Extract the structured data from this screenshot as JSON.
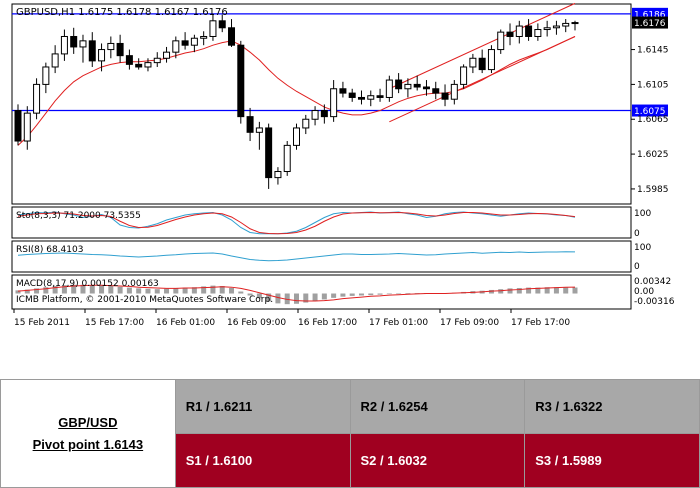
{
  "chart_data": {
    "type": "candlestick",
    "symbol_header": "GBPUSD,H1  1.6175 1.6178 1.6167 1.6176",
    "ylim": [
      1.597,
      1.6195
    ],
    "y_ticks": [
      "1.6145",
      "1.6105",
      "1.6065",
      "1.6025",
      "1.5985"
    ],
    "hlines": [
      {
        "value": 1.6186,
        "label": "1.6186",
        "color": "#0000ff"
      },
      {
        "value": 1.6075,
        "label": "1.6075",
        "color": "#0000ff"
      }
    ],
    "current_price": "1.6176",
    "x_labels": [
      "15 Feb 2011",
      "15 Feb 17:00",
      "16 Feb 01:00",
      "16 Feb 09:00",
      "16 Feb 17:00",
      "17 Feb 01:00",
      "17 Feb 09:00",
      "17 Feb 17:00"
    ],
    "candles": [
      [
        1.6075,
        1.6082,
        1.6035,
        1.604
      ],
      [
        1.604,
        1.608,
        1.603,
        1.6072
      ],
      [
        1.6072,
        1.6112,
        1.6065,
        1.6105
      ],
      [
        1.6105,
        1.613,
        1.6095,
        1.6125
      ],
      [
        1.6125,
        1.615,
        1.6118,
        1.614
      ],
      [
        1.614,
        1.6168,
        1.6132,
        1.616
      ],
      [
        1.616,
        1.617,
        1.614,
        1.6148
      ],
      [
        1.6148,
        1.6162,
        1.613,
        1.6155
      ],
      [
        1.6155,
        1.6165,
        1.6125,
        1.6132
      ],
      [
        1.6132,
        1.6152,
        1.612,
        1.6145
      ],
      [
        1.6145,
        1.616,
        1.6135,
        1.6152
      ],
      [
        1.6152,
        1.6162,
        1.613,
        1.6138
      ],
      [
        1.6138,
        1.6145,
        1.6122,
        1.6128
      ],
      [
        1.6128,
        1.6135,
        1.6122,
        1.6125
      ],
      [
        1.6125,
        1.6135,
        1.612,
        1.613
      ],
      [
        1.613,
        1.6142,
        1.6125,
        1.6135
      ],
      [
        1.6135,
        1.6148,
        1.613,
        1.6142
      ],
      [
        1.6142,
        1.616,
        1.6135,
        1.6155
      ],
      [
        1.6155,
        1.6165,
        1.6145,
        1.615
      ],
      [
        1.615,
        1.6162,
        1.6142,
        1.6158
      ],
      [
        1.6158,
        1.6166,
        1.615,
        1.616
      ],
      [
        1.616,
        1.6186,
        1.6155,
        1.6178
      ],
      [
        1.6178,
        1.6185,
        1.6165,
        1.617
      ],
      [
        1.617,
        1.618,
        1.6148,
        1.615
      ],
      [
        1.615,
        1.6155,
        1.606,
        1.6068
      ],
      [
        1.6068,
        1.6078,
        1.604,
        1.605
      ],
      [
        1.605,
        1.6062,
        1.603,
        1.6055
      ],
      [
        1.6055,
        1.606,
        1.5985,
        1.5998
      ],
      [
        1.5998,
        1.601,
        1.599,
        1.6005
      ],
      [
        1.6005,
        1.604,
        1.6,
        1.6035
      ],
      [
        1.6035,
        1.606,
        1.603,
        1.6055
      ],
      [
        1.6055,
        1.607,
        1.6048,
        1.6065
      ],
      [
        1.6065,
        1.608,
        1.6058,
        1.6075
      ],
      [
        1.6075,
        1.6082,
        1.606,
        1.6068
      ],
      [
        1.6068,
        1.611,
        1.6062,
        1.61
      ],
      [
        1.61,
        1.6108,
        1.609,
        1.6095
      ],
      [
        1.6095,
        1.61,
        1.6085,
        1.609
      ],
      [
        1.609,
        1.6098,
        1.6082,
        1.6088
      ],
      [
        1.6088,
        1.6098,
        1.608,
        1.6092
      ],
      [
        1.6092,
        1.61,
        1.6085,
        1.609
      ],
      [
        1.609,
        1.6115,
        1.6085,
        1.611
      ],
      [
        1.611,
        1.6118,
        1.6095,
        1.61
      ],
      [
        1.61,
        1.6112,
        1.609,
        1.6105
      ],
      [
        1.6105,
        1.6115,
        1.6098,
        1.6102
      ],
      [
        1.6102,
        1.611,
        1.6092,
        1.61
      ],
      [
        1.61,
        1.6108,
        1.6088,
        1.6095
      ],
      [
        1.6095,
        1.6105,
        1.608,
        1.6088
      ],
      [
        1.6088,
        1.611,
        1.6082,
        1.6105
      ],
      [
        1.6105,
        1.6128,
        1.61,
        1.6125
      ],
      [
        1.6125,
        1.614,
        1.6118,
        1.6135
      ],
      [
        1.6135,
        1.6145,
        1.6118,
        1.6122
      ],
      [
        1.6122,
        1.615,
        1.6118,
        1.6145
      ],
      [
        1.6145,
        1.6168,
        1.614,
        1.6165
      ],
      [
        1.6165,
        1.6175,
        1.615,
        1.616
      ],
      [
        1.616,
        1.6178,
        1.6152,
        1.6172
      ],
      [
        1.6172,
        1.618,
        1.6155,
        1.616
      ],
      [
        1.616,
        1.6175,
        1.6155,
        1.6168
      ],
      [
        1.6168,
        1.6178,
        1.616,
        1.617
      ],
      [
        1.617,
        1.6178,
        1.6162,
        1.6172
      ],
      [
        1.6172,
        1.618,
        1.6165,
        1.6175
      ],
      [
        1.6175,
        1.6178,
        1.6167,
        1.6176
      ]
    ],
    "ma": [
      1.6035,
      1.6045,
      1.6058,
      1.6072,
      1.6086,
      1.6098,
      1.6108,
      1.6115,
      1.612,
      1.6125,
      1.6128,
      1.613,
      1.6131,
      1.6131,
      1.6132,
      1.6133,
      1.6135,
      1.6138,
      1.6141,
      1.6143,
      1.6146,
      1.615,
      1.6153,
      1.6155,
      1.615,
      1.6142,
      1.6133,
      1.6122,
      1.6112,
      1.6104,
      1.6097,
      1.6091,
      1.6085,
      1.6079,
      1.6075,
      1.6072,
      1.607,
      1.607,
      1.6072,
      1.6075,
      1.608,
      1.6085,
      1.6089,
      1.6092,
      1.6094,
      1.6095,
      1.6095,
      1.6097,
      1.61,
      1.6105,
      1.611,
      1.6116,
      1.6122,
      1.6128,
      1.6133,
      1.6137,
      1.6141,
      1.6145,
      1.615,
      1.6155,
      1.616
    ],
    "trend_lines": [
      {
        "from": [
          40,
          1.61
        ],
        "to": [
          60,
          1.6198
        ]
      },
      {
        "from": [
          40,
          1.6062
        ],
        "to": [
          60,
          1.616
        ]
      }
    ],
    "stochastic": {
      "label": "Sto(8,3,3) 71.2000 73.5355",
      "levels": [
        "100",
        "0"
      ],
      "main": [
        80,
        85,
        90,
        88,
        92,
        85,
        80,
        70,
        75,
        82,
        70,
        40,
        30,
        28,
        35,
        45,
        60,
        70,
        80,
        85,
        88,
        90,
        80,
        60,
        30,
        10,
        5,
        5,
        5,
        8,
        15,
        30,
        50,
        70,
        85,
        90,
        88,
        90,
        92,
        88,
        90,
        92,
        85,
        80,
        70,
        75,
        85,
        90,
        92,
        88,
        85,
        80,
        75,
        80,
        85,
        88,
        86,
        84,
        80,
        78,
        71
      ],
      "signal": [
        75,
        80,
        85,
        86,
        88,
        87,
        84,
        78,
        76,
        78,
        74,
        55,
        38,
        30,
        31,
        38,
        50,
        62,
        72,
        80,
        85,
        88,
        85,
        72,
        50,
        25,
        10,
        6,
        5,
        6,
        10,
        20,
        35,
        55,
        72,
        84,
        88,
        89,
        90,
        89,
        89,
        90,
        88,
        84,
        78,
        76,
        80,
        86,
        90,
        90,
        88,
        84,
        80,
        80,
        82,
        85,
        86,
        85,
        82,
        78,
        73.5
      ]
    },
    "rsi": {
      "label": "RSI(8) 68.4103",
      "levels": [
        "100",
        "0"
      ],
      "values": [
        55,
        58,
        60,
        62,
        63,
        64,
        62,
        60,
        58,
        57,
        55,
        52,
        50,
        48,
        50,
        52,
        55,
        57,
        60,
        62,
        63,
        64,
        60,
        52,
        45,
        38,
        35,
        33,
        34,
        36,
        40,
        44,
        48,
        52,
        56,
        60,
        60,
        58,
        58,
        59,
        60,
        62,
        60,
        58,
        56,
        57,
        60,
        62,
        64,
        66,
        63,
        65,
        67,
        66,
        68,
        66,
        67,
        68,
        68,
        69,
        68.4
      ]
    },
    "macd": {
      "label": "MACD(8,17,9) 0.00152 0.00163",
      "levels": [
        "0.00342",
        "0.00",
        "-0.00316"
      ],
      "histogram": [
        0.0008,
        0.001,
        0.0013,
        0.0016,
        0.0019,
        0.0021,
        0.0022,
        0.0022,
        0.0021,
        0.002,
        0.0019,
        0.0017,
        0.0015,
        0.0013,
        0.0012,
        0.0011,
        0.0012,
        0.0013,
        0.0015,
        0.0016,
        0.0018,
        0.002,
        0.0019,
        0.0014,
        0.0005,
        -0.0005,
        -0.0012,
        -0.002,
        -0.0025,
        -0.0027,
        -0.0026,
        -0.0023,
        -0.0019,
        -0.0015,
        -0.0011,
        -0.0008,
        -0.0006,
        -0.0005,
        -0.0004,
        -0.0003,
        -0.0001,
        0.0,
        0.0001,
        0.0001,
        0.0001,
        0.0001,
        0.0001,
        0.0002,
        0.0004,
        0.0006,
        0.0007,
        0.0009,
        0.0011,
        0.0013,
        0.0014,
        0.0015,
        0.0015,
        0.0016,
        0.0016,
        0.0015,
        0.00152
      ],
      "signal": [
        0.0006,
        0.0008,
        0.001,
        0.0012,
        0.0015,
        0.0017,
        0.0019,
        0.002,
        0.0021,
        0.0021,
        0.002,
        0.0019,
        0.0018,
        0.0016,
        0.0015,
        0.0014,
        0.0013,
        0.0013,
        0.0014,
        0.0014,
        0.0015,
        0.0016,
        0.0017,
        0.0016,
        0.0013,
        0.0008,
        0.0002,
        -0.0004,
        -0.001,
        -0.0015,
        -0.0018,
        -0.0019,
        -0.0019,
        -0.0018,
        -0.0016,
        -0.0013,
        -0.0011,
        -0.0009,
        -0.0007,
        -0.0006,
        -0.0004,
        -0.0003,
        -0.0002,
        -0.0001,
        0.0,
        0.0,
        0.0,
        0.0001,
        0.0002,
        0.0003,
        0.0004,
        0.0006,
        0.0007,
        0.0009,
        0.001,
        0.0012,
        0.0013,
        0.0014,
        0.0015,
        0.0016,
        0.00163
      ]
    },
    "copyright": "ICMB Platform, © 2001-2010 MetaQuotes Software Corp."
  },
  "pivot_table": {
    "pair": "GBP/USD",
    "pivot": "Pivot point 1.6143",
    "r1": "R1 / 1.6211",
    "r2": "R2 / 1.6254",
    "r3": "R3 / 1.6322",
    "s1": "S1 / 1.6100",
    "s2": "S2 / 1.6032",
    "s3": "S3 / 1.5989"
  },
  "colors": {
    "bull": "#ffffff",
    "bear": "#000000",
    "ma": "#e02020",
    "level_line": "#0000ff",
    "stoch_main": "#30a0d0",
    "stoch_signal": "#e02020",
    "rsi": "#30a0d0",
    "macd_hist": "#a0a0a0",
    "macd_signal": "#e02020",
    "resistance_bg": "#a8a8a8",
    "support_bg": "#a00020"
  }
}
